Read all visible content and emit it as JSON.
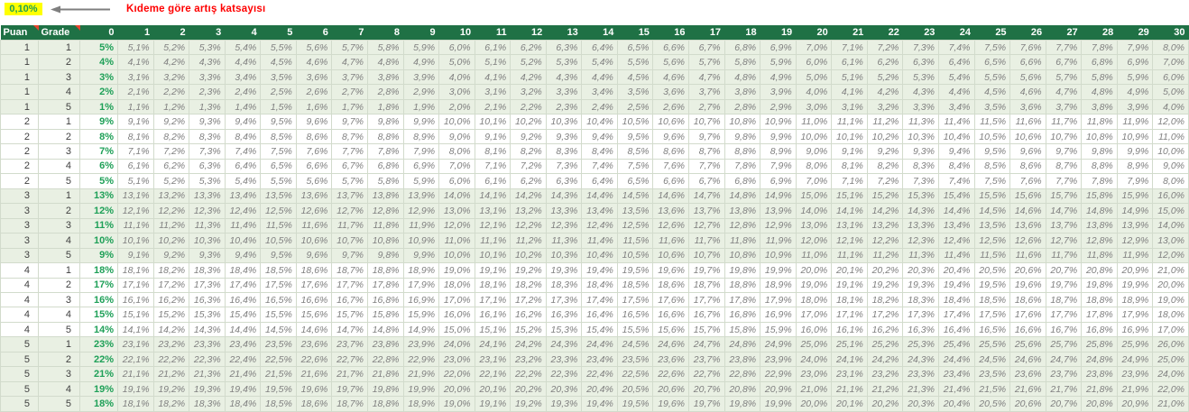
{
  "annotation": {
    "value": "0,10%",
    "label": "Kıdeme göre artış katsayısı",
    "value_bg": "#ffff00",
    "value_text_color": "#1f9e53",
    "label_color": "#ff0000",
    "arrow_color": "#7f7f7f"
  },
  "table": {
    "header": {
      "puan_label": "Puan",
      "grade_label": "Grade",
      "months": [
        "0",
        "1",
        "2",
        "3",
        "4",
        "5",
        "6",
        "7",
        "8",
        "9",
        "10",
        "11",
        "12",
        "13",
        "14",
        "15",
        "16",
        "17",
        "18",
        "19",
        "20",
        "21",
        "22",
        "23",
        "24",
        "25",
        "26",
        "27",
        "28",
        "29",
        "30"
      ]
    },
    "colors": {
      "header_bg": "#1f7145",
      "header_text": "#ffffff",
      "band_row_bg": "#e9f0e3",
      "white_row_bg": "#ffffff",
      "grid_line": "#d2dbcc",
      "base_value_text": "#1fa058",
      "cell_value_text": "#808080",
      "label_number_text": "#404040",
      "comment_marker": "#e8442e"
    },
    "rows": [
      {
        "puan": "1",
        "grade": "1",
        "base": "5%",
        "values": [
          "5,1%",
          "5,2%",
          "5,3%",
          "5,4%",
          "5,5%",
          "5,6%",
          "5,7%",
          "5,8%",
          "5,9%",
          "6,0%",
          "6,1%",
          "6,2%",
          "6,3%",
          "6,4%",
          "6,5%",
          "6,6%",
          "6,7%",
          "6,8%",
          "6,9%",
          "7,0%",
          "7,1%",
          "7,2%",
          "7,3%",
          "7,4%",
          "7,5%",
          "7,6%",
          "7,7%",
          "7,8%",
          "7,9%",
          "8,0%"
        ]
      },
      {
        "puan": "1",
        "grade": "2",
        "base": "4%",
        "values": [
          "4,1%",
          "4,2%",
          "4,3%",
          "4,4%",
          "4,5%",
          "4,6%",
          "4,7%",
          "4,8%",
          "4,9%",
          "5,0%",
          "5,1%",
          "5,2%",
          "5,3%",
          "5,4%",
          "5,5%",
          "5,6%",
          "5,7%",
          "5,8%",
          "5,9%",
          "6,0%",
          "6,1%",
          "6,2%",
          "6,3%",
          "6,4%",
          "6,5%",
          "6,6%",
          "6,7%",
          "6,8%",
          "6,9%",
          "7,0%"
        ]
      },
      {
        "puan": "1",
        "grade": "3",
        "base": "3%",
        "values": [
          "3,1%",
          "3,2%",
          "3,3%",
          "3,4%",
          "3,5%",
          "3,6%",
          "3,7%",
          "3,8%",
          "3,9%",
          "4,0%",
          "4,1%",
          "4,2%",
          "4,3%",
          "4,4%",
          "4,5%",
          "4,6%",
          "4,7%",
          "4,8%",
          "4,9%",
          "5,0%",
          "5,1%",
          "5,2%",
          "5,3%",
          "5,4%",
          "5,5%",
          "5,6%",
          "5,7%",
          "5,8%",
          "5,9%",
          "6,0%"
        ]
      },
      {
        "puan": "1",
        "grade": "4",
        "base": "2%",
        "values": [
          "2,1%",
          "2,2%",
          "2,3%",
          "2,4%",
          "2,5%",
          "2,6%",
          "2,7%",
          "2,8%",
          "2,9%",
          "3,0%",
          "3,1%",
          "3,2%",
          "3,3%",
          "3,4%",
          "3,5%",
          "3,6%",
          "3,7%",
          "3,8%",
          "3,9%",
          "4,0%",
          "4,1%",
          "4,2%",
          "4,3%",
          "4,4%",
          "4,5%",
          "4,6%",
          "4,7%",
          "4,8%",
          "4,9%",
          "5,0%"
        ]
      },
      {
        "puan": "1",
        "grade": "5",
        "base": "1%",
        "values": [
          "1,1%",
          "1,2%",
          "1,3%",
          "1,4%",
          "1,5%",
          "1,6%",
          "1,7%",
          "1,8%",
          "1,9%",
          "2,0%",
          "2,1%",
          "2,2%",
          "2,3%",
          "2,4%",
          "2,5%",
          "2,6%",
          "2,7%",
          "2,8%",
          "2,9%",
          "3,0%",
          "3,1%",
          "3,2%",
          "3,3%",
          "3,4%",
          "3,5%",
          "3,6%",
          "3,7%",
          "3,8%",
          "3,9%",
          "4,0%"
        ]
      },
      {
        "puan": "2",
        "grade": "1",
        "base": "9%",
        "values": [
          "9,1%",
          "9,2%",
          "9,3%",
          "9,4%",
          "9,5%",
          "9,6%",
          "9,7%",
          "9,8%",
          "9,9%",
          "10,0%",
          "10,1%",
          "10,2%",
          "10,3%",
          "10,4%",
          "10,5%",
          "10,6%",
          "10,7%",
          "10,8%",
          "10,9%",
          "11,0%",
          "11,1%",
          "11,2%",
          "11,3%",
          "11,4%",
          "11,5%",
          "11,6%",
          "11,7%",
          "11,8%",
          "11,9%",
          "12,0%"
        ]
      },
      {
        "puan": "2",
        "grade": "2",
        "base": "8%",
        "values": [
          "8,1%",
          "8,2%",
          "8,3%",
          "8,4%",
          "8,5%",
          "8,6%",
          "8,7%",
          "8,8%",
          "8,9%",
          "9,0%",
          "9,1%",
          "9,2%",
          "9,3%",
          "9,4%",
          "9,5%",
          "9,6%",
          "9,7%",
          "9,8%",
          "9,9%",
          "10,0%",
          "10,1%",
          "10,2%",
          "10,3%",
          "10,4%",
          "10,5%",
          "10,6%",
          "10,7%",
          "10,8%",
          "10,9%",
          "11,0%"
        ]
      },
      {
        "puan": "2",
        "grade": "3",
        "base": "7%",
        "values": [
          "7,1%",
          "7,2%",
          "7,3%",
          "7,4%",
          "7,5%",
          "7,6%",
          "7,7%",
          "7,8%",
          "7,9%",
          "8,0%",
          "8,1%",
          "8,2%",
          "8,3%",
          "8,4%",
          "8,5%",
          "8,6%",
          "8,7%",
          "8,8%",
          "8,9%",
          "9,0%",
          "9,1%",
          "9,2%",
          "9,3%",
          "9,4%",
          "9,5%",
          "9,6%",
          "9,7%",
          "9,8%",
          "9,9%",
          "10,0%"
        ]
      },
      {
        "puan": "2",
        "grade": "4",
        "base": "6%",
        "values": [
          "6,1%",
          "6,2%",
          "6,3%",
          "6,4%",
          "6,5%",
          "6,6%",
          "6,7%",
          "6,8%",
          "6,9%",
          "7,0%",
          "7,1%",
          "7,2%",
          "7,3%",
          "7,4%",
          "7,5%",
          "7,6%",
          "7,7%",
          "7,8%",
          "7,9%",
          "8,0%",
          "8,1%",
          "8,2%",
          "8,3%",
          "8,4%",
          "8,5%",
          "8,6%",
          "8,7%",
          "8,8%",
          "8,9%",
          "9,0%"
        ]
      },
      {
        "puan": "2",
        "grade": "5",
        "base": "5%",
        "values": [
          "5,1%",
          "5,2%",
          "5,3%",
          "5,4%",
          "5,5%",
          "5,6%",
          "5,7%",
          "5,8%",
          "5,9%",
          "6,0%",
          "6,1%",
          "6,2%",
          "6,3%",
          "6,4%",
          "6,5%",
          "6,6%",
          "6,7%",
          "6,8%",
          "6,9%",
          "7,0%",
          "7,1%",
          "7,2%",
          "7,3%",
          "7,4%",
          "7,5%",
          "7,6%",
          "7,7%",
          "7,8%",
          "7,9%",
          "8,0%"
        ]
      },
      {
        "puan": "3",
        "grade": "1",
        "base": "13%",
        "values": [
          "13,1%",
          "13,2%",
          "13,3%",
          "13,4%",
          "13,5%",
          "13,6%",
          "13,7%",
          "13,8%",
          "13,9%",
          "14,0%",
          "14,1%",
          "14,2%",
          "14,3%",
          "14,4%",
          "14,5%",
          "14,6%",
          "14,7%",
          "14,8%",
          "14,9%",
          "15,0%",
          "15,1%",
          "15,2%",
          "15,3%",
          "15,4%",
          "15,5%",
          "15,6%",
          "15,7%",
          "15,8%",
          "15,9%",
          "16,0%"
        ]
      },
      {
        "puan": "3",
        "grade": "2",
        "base": "12%",
        "values": [
          "12,1%",
          "12,2%",
          "12,3%",
          "12,4%",
          "12,5%",
          "12,6%",
          "12,7%",
          "12,8%",
          "12,9%",
          "13,0%",
          "13,1%",
          "13,2%",
          "13,3%",
          "13,4%",
          "13,5%",
          "13,6%",
          "13,7%",
          "13,8%",
          "13,9%",
          "14,0%",
          "14,1%",
          "14,2%",
          "14,3%",
          "14,4%",
          "14,5%",
          "14,6%",
          "14,7%",
          "14,8%",
          "14,9%",
          "15,0%"
        ]
      },
      {
        "puan": "3",
        "grade": "3",
        "base": "11%",
        "values": [
          "11,1%",
          "11,2%",
          "11,3%",
          "11,4%",
          "11,5%",
          "11,6%",
          "11,7%",
          "11,8%",
          "11,9%",
          "12,0%",
          "12,1%",
          "12,2%",
          "12,3%",
          "12,4%",
          "12,5%",
          "12,6%",
          "12,7%",
          "12,8%",
          "12,9%",
          "13,0%",
          "13,1%",
          "13,2%",
          "13,3%",
          "13,4%",
          "13,5%",
          "13,6%",
          "13,7%",
          "13,8%",
          "13,9%",
          "14,0%"
        ]
      },
      {
        "puan": "3",
        "grade": "4",
        "base": "10%",
        "values": [
          "10,1%",
          "10,2%",
          "10,3%",
          "10,4%",
          "10,5%",
          "10,6%",
          "10,7%",
          "10,8%",
          "10,9%",
          "11,0%",
          "11,1%",
          "11,2%",
          "11,3%",
          "11,4%",
          "11,5%",
          "11,6%",
          "11,7%",
          "11,8%",
          "11,9%",
          "12,0%",
          "12,1%",
          "12,2%",
          "12,3%",
          "12,4%",
          "12,5%",
          "12,6%",
          "12,7%",
          "12,8%",
          "12,9%",
          "13,0%"
        ]
      },
      {
        "puan": "3",
        "grade": "5",
        "base": "9%",
        "values": [
          "9,1%",
          "9,2%",
          "9,3%",
          "9,4%",
          "9,5%",
          "9,6%",
          "9,7%",
          "9,8%",
          "9,9%",
          "10,0%",
          "10,1%",
          "10,2%",
          "10,3%",
          "10,4%",
          "10,5%",
          "10,6%",
          "10,7%",
          "10,8%",
          "10,9%",
          "11,0%",
          "11,1%",
          "11,2%",
          "11,3%",
          "11,4%",
          "11,5%",
          "11,6%",
          "11,7%",
          "11,8%",
          "11,9%",
          "12,0%"
        ]
      },
      {
        "puan": "4",
        "grade": "1",
        "base": "18%",
        "values": [
          "18,1%",
          "18,2%",
          "18,3%",
          "18,4%",
          "18,5%",
          "18,6%",
          "18,7%",
          "18,8%",
          "18,9%",
          "19,0%",
          "19,1%",
          "19,2%",
          "19,3%",
          "19,4%",
          "19,5%",
          "19,6%",
          "19,7%",
          "19,8%",
          "19,9%",
          "20,0%",
          "20,1%",
          "20,2%",
          "20,3%",
          "20,4%",
          "20,5%",
          "20,6%",
          "20,7%",
          "20,8%",
          "20,9%",
          "21,0%"
        ]
      },
      {
        "puan": "4",
        "grade": "2",
        "base": "17%",
        "values": [
          "17,1%",
          "17,2%",
          "17,3%",
          "17,4%",
          "17,5%",
          "17,6%",
          "17,7%",
          "17,8%",
          "17,9%",
          "18,0%",
          "18,1%",
          "18,2%",
          "18,3%",
          "18,4%",
          "18,5%",
          "18,6%",
          "18,7%",
          "18,8%",
          "18,9%",
          "19,0%",
          "19,1%",
          "19,2%",
          "19,3%",
          "19,4%",
          "19,5%",
          "19,6%",
          "19,7%",
          "19,8%",
          "19,9%",
          "20,0%"
        ]
      },
      {
        "puan": "4",
        "grade": "3",
        "base": "16%",
        "values": [
          "16,1%",
          "16,2%",
          "16,3%",
          "16,4%",
          "16,5%",
          "16,6%",
          "16,7%",
          "16,8%",
          "16,9%",
          "17,0%",
          "17,1%",
          "17,2%",
          "17,3%",
          "17,4%",
          "17,5%",
          "17,6%",
          "17,7%",
          "17,8%",
          "17,9%",
          "18,0%",
          "18,1%",
          "18,2%",
          "18,3%",
          "18,4%",
          "18,5%",
          "18,6%",
          "18,7%",
          "18,8%",
          "18,9%",
          "19,0%"
        ]
      },
      {
        "puan": "4",
        "grade": "4",
        "base": "15%",
        "values": [
          "15,1%",
          "15,2%",
          "15,3%",
          "15,4%",
          "15,5%",
          "15,6%",
          "15,7%",
          "15,8%",
          "15,9%",
          "16,0%",
          "16,1%",
          "16,2%",
          "16,3%",
          "16,4%",
          "16,5%",
          "16,6%",
          "16,7%",
          "16,8%",
          "16,9%",
          "17,0%",
          "17,1%",
          "17,2%",
          "17,3%",
          "17,4%",
          "17,5%",
          "17,6%",
          "17,7%",
          "17,8%",
          "17,9%",
          "18,0%"
        ]
      },
      {
        "puan": "4",
        "grade": "5",
        "base": "14%",
        "values": [
          "14,1%",
          "14,2%",
          "14,3%",
          "14,4%",
          "14,5%",
          "14,6%",
          "14,7%",
          "14,8%",
          "14,9%",
          "15,0%",
          "15,1%",
          "15,2%",
          "15,3%",
          "15,4%",
          "15,5%",
          "15,6%",
          "15,7%",
          "15,8%",
          "15,9%",
          "16,0%",
          "16,1%",
          "16,2%",
          "16,3%",
          "16,4%",
          "16,5%",
          "16,6%",
          "16,7%",
          "16,8%",
          "16,9%",
          "17,0%"
        ]
      },
      {
        "puan": "5",
        "grade": "1",
        "base": "23%",
        "values": [
          "23,1%",
          "23,2%",
          "23,3%",
          "23,4%",
          "23,5%",
          "23,6%",
          "23,7%",
          "23,8%",
          "23,9%",
          "24,0%",
          "24,1%",
          "24,2%",
          "24,3%",
          "24,4%",
          "24,5%",
          "24,6%",
          "24,7%",
          "24,8%",
          "24,9%",
          "25,0%",
          "25,1%",
          "25,2%",
          "25,3%",
          "25,4%",
          "25,5%",
          "25,6%",
          "25,7%",
          "25,8%",
          "25,9%",
          "26,0%"
        ]
      },
      {
        "puan": "5",
        "grade": "2",
        "base": "22%",
        "values": [
          "22,1%",
          "22,2%",
          "22,3%",
          "22,4%",
          "22,5%",
          "22,6%",
          "22,7%",
          "22,8%",
          "22,9%",
          "23,0%",
          "23,1%",
          "23,2%",
          "23,3%",
          "23,4%",
          "23,5%",
          "23,6%",
          "23,7%",
          "23,8%",
          "23,9%",
          "24,0%",
          "24,1%",
          "24,2%",
          "24,3%",
          "24,4%",
          "24,5%",
          "24,6%",
          "24,7%",
          "24,8%",
          "24,9%",
          "25,0%"
        ]
      },
      {
        "puan": "5",
        "grade": "3",
        "base": "21%",
        "values": [
          "21,1%",
          "21,2%",
          "21,3%",
          "21,4%",
          "21,5%",
          "21,6%",
          "21,7%",
          "21,8%",
          "21,9%",
          "22,0%",
          "22,1%",
          "22,2%",
          "22,3%",
          "22,4%",
          "22,5%",
          "22,6%",
          "22,7%",
          "22,8%",
          "22,9%",
          "23,0%",
          "23,1%",
          "23,2%",
          "23,3%",
          "23,4%",
          "23,5%",
          "23,6%",
          "23,7%",
          "23,8%",
          "23,9%",
          "24,0%"
        ]
      },
      {
        "puan": "5",
        "grade": "4",
        "base": "19%",
        "values": [
          "19,1%",
          "19,2%",
          "19,3%",
          "19,4%",
          "19,5%",
          "19,6%",
          "19,7%",
          "19,8%",
          "19,9%",
          "20,0%",
          "20,1%",
          "20,2%",
          "20,3%",
          "20,4%",
          "20,5%",
          "20,6%",
          "20,7%",
          "20,8%",
          "20,9%",
          "21,0%",
          "21,1%",
          "21,2%",
          "21,3%",
          "21,4%",
          "21,5%",
          "21,6%",
          "21,7%",
          "21,8%",
          "21,9%",
          "22,0%"
        ]
      },
      {
        "puan": "5",
        "grade": "5",
        "base": "18%",
        "values": [
          "18,1%",
          "18,2%",
          "18,3%",
          "18,4%",
          "18,5%",
          "18,6%",
          "18,7%",
          "18,8%",
          "18,9%",
          "19,0%",
          "19,1%",
          "19,2%",
          "19,3%",
          "19,4%",
          "19,5%",
          "19,6%",
          "19,7%",
          "19,8%",
          "19,9%",
          "20,0%",
          "20,1%",
          "20,2%",
          "20,3%",
          "20,4%",
          "20,5%",
          "20,6%",
          "20,7%",
          "20,8%",
          "20,9%",
          "21,0%"
        ]
      }
    ]
  }
}
